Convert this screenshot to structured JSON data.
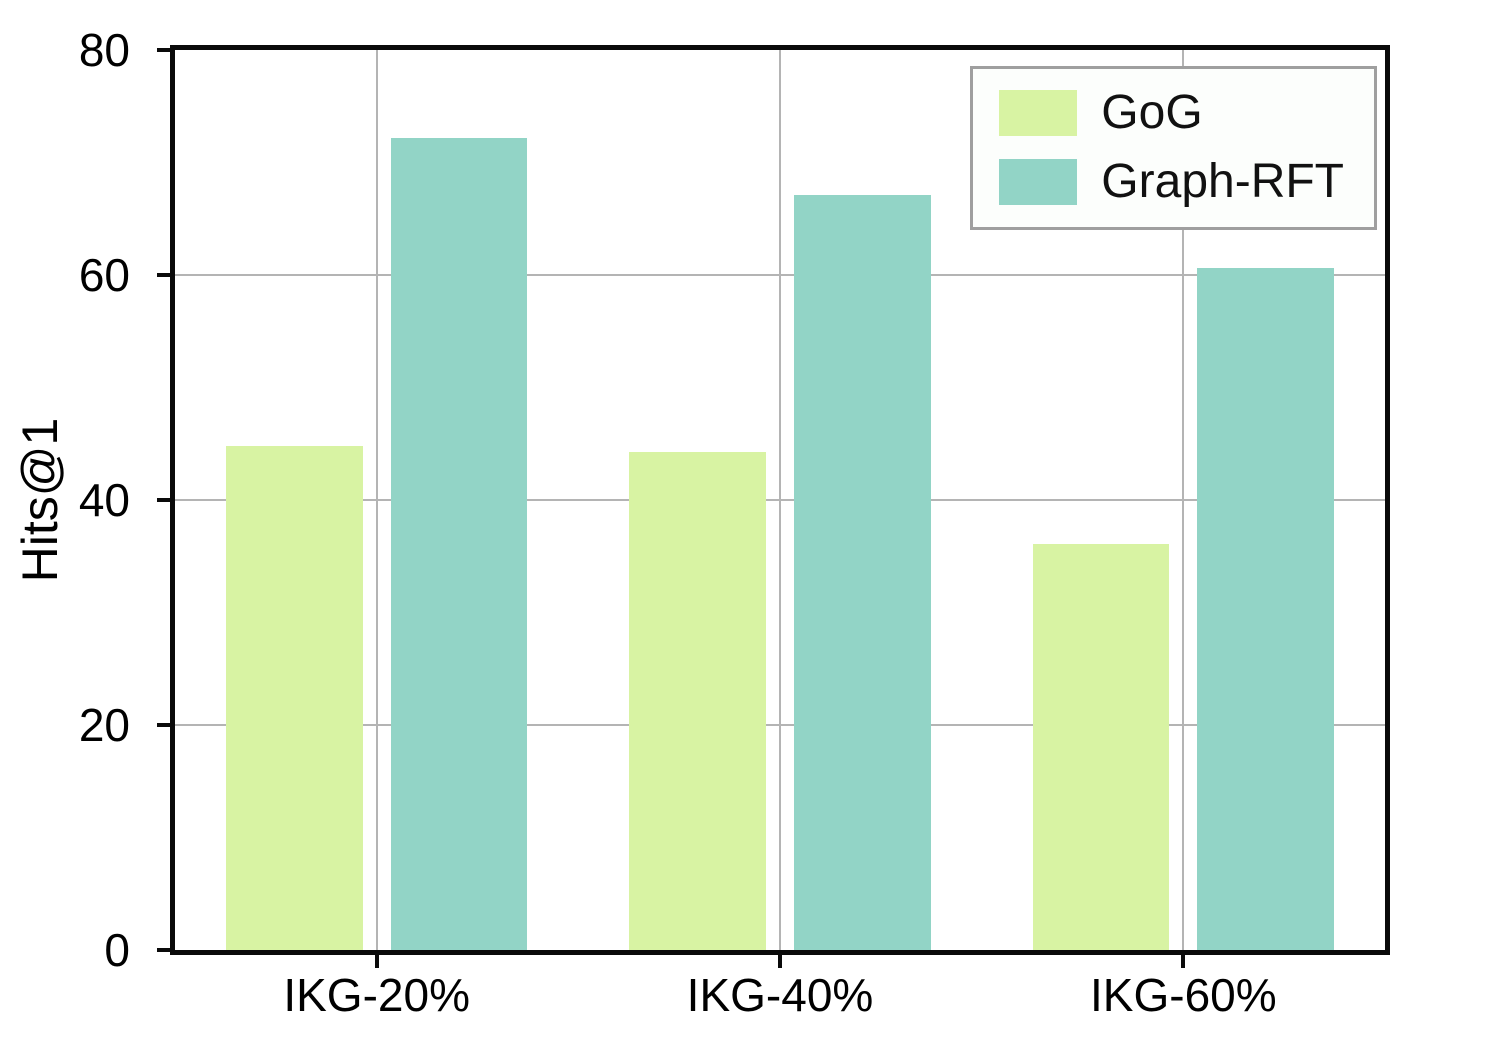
{
  "chart_data": {
    "type": "bar",
    "categories": [
      "IKG-20%",
      "IKG-40%",
      "IKG-60%"
    ],
    "series": [
      {
        "name": "GoG",
        "color": "#d8f3a3",
        "values": [
          44.8,
          44.3,
          36.1
        ]
      },
      {
        "name": "Graph-RFT",
        "color": "#92d4c6",
        "values": [
          72.2,
          67.1,
          60.6
        ]
      }
    ],
    "title": "",
    "xlabel": "",
    "ylabel": "Hits@1",
    "ylim": [
      0,
      80
    ],
    "yticks": [
      0,
      20,
      40,
      60,
      80
    ],
    "grid": true,
    "legend_position": "top-right",
    "axis_color": "#0a0a0a",
    "gridline_color": "#b4b4b4"
  }
}
